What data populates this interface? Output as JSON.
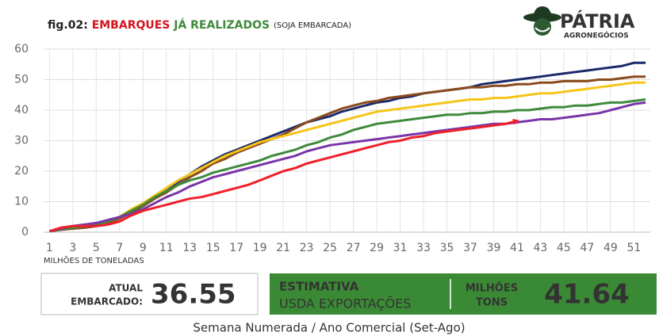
{
  "header": {
    "fig": "fig.02:",
    "title_red": "EMBARQUES",
    "title_green": "JÁ REALIZADOS",
    "subtitle": "(SOJA EMBARCADA)",
    "logo": "PÁTRIA",
    "logo_sub": "AGRONEGÓCIOS"
  },
  "chart_data": {
    "type": "line",
    "x": [
      1,
      2,
      3,
      4,
      5,
      6,
      7,
      8,
      9,
      10,
      11,
      12,
      13,
      14,
      15,
      16,
      17,
      18,
      19,
      20,
      21,
      22,
      23,
      24,
      25,
      26,
      27,
      28,
      29,
      30,
      31,
      32,
      33,
      34,
      35,
      36,
      37,
      38,
      39,
      40,
      41,
      42,
      43,
      44,
      45,
      46,
      47,
      48,
      49,
      50,
      51,
      52
    ],
    "xlim": [
      0.5,
      52.4
    ],
    "xticks": [
      1,
      3,
      5,
      7,
      9,
      11,
      13,
      15,
      17,
      19,
      21,
      23,
      25,
      27,
      29,
      31,
      33,
      35,
      37,
      39,
      41,
      43,
      45,
      47,
      49,
      51
    ],
    "ylim": [
      0,
      60
    ],
    "yticks": [
      0,
      10,
      20,
      30,
      40,
      50,
      60
    ],
    "grid": true,
    "ylabel": "MILHÕES DE TONELADAS",
    "xlabel": "Semana Numerada / Ano Comercial (Set-Ago)",
    "series": [
      {
        "color": "#1b2a6b",
        "values": [
          0.3,
          0.8,
          1.2,
          1.5,
          2,
          3,
          4.5,
          6.5,
          9,
          11.5,
          14,
          16.5,
          19,
          21.5,
          23.5,
          25.5,
          27,
          28.5,
          30,
          31.5,
          33,
          34.5,
          36,
          37,
          38,
          39.5,
          40.5,
          41.5,
          42.5,
          43,
          44,
          44.5,
          45.5,
          46,
          46.5,
          47,
          47.5,
          48.5,
          49,
          49.5,
          50,
          50.5,
          51,
          51.5,
          52,
          52.5,
          53,
          53.5,
          54,
          54.5,
          55.5,
          55.5
        ]
      },
      {
        "color": "#8b4a1c",
        "values": [
          0.3,
          0.8,
          1.2,
          1.5,
          2,
          3,
          4.5,
          6.5,
          8.5,
          11,
          13,
          15.5,
          18,
          20,
          22.5,
          24,
          26,
          27.5,
          29,
          30.5,
          32,
          34,
          36,
          37.5,
          39,
          40.5,
          41.5,
          42.5,
          43,
          44,
          44.5,
          45,
          45.5,
          46,
          46.5,
          47,
          47.5,
          47.5,
          48,
          48,
          48.5,
          48.5,
          49,
          49,
          49.5,
          49.5,
          49.5,
          50,
          50,
          50.5,
          51,
          51
        ]
      },
      {
        "color": "#f5c518",
        "values": [
          0.3,
          1,
          1.5,
          2,
          2.5,
          3.5,
          5,
          7.5,
          9.5,
          12,
          14.5,
          17,
          19,
          21,
          23,
          25,
          26.5,
          28,
          29.5,
          30.5,
          31.5,
          32.5,
          33.5,
          34.5,
          35.5,
          36.5,
          37.5,
          38.5,
          39.5,
          40,
          40.5,
          41,
          41.5,
          42,
          42.5,
          43,
          43.5,
          43.5,
          44,
          44,
          44.5,
          45,
          45.5,
          45.5,
          46,
          46.5,
          47,
          47.5,
          48,
          48.5,
          49,
          49
        ]
      },
      {
        "color": "#3f8a3a",
        "values": [
          0.3,
          1,
          1.5,
          2,
          2.5,
          3.5,
          5,
          7,
          9,
          11.5,
          13.5,
          15.5,
          17,
          18,
          19.5,
          20.5,
          21.5,
          22.5,
          23.5,
          25,
          26,
          27,
          28.5,
          29.5,
          31,
          32,
          33.5,
          34.5,
          35.5,
          36,
          36.5,
          37,
          37.5,
          38,
          38.5,
          38.5,
          39,
          39,
          39.5,
          39.5,
          40,
          40,
          40.5,
          41,
          41,
          41.5,
          41.5,
          42,
          42.5,
          42.5,
          43,
          43.5
        ]
      },
      {
        "color": "#7a35a8",
        "values": [
          0.3,
          1.2,
          2,
          2.5,
          3,
          4,
          5,
          6,
          7.5,
          9.5,
          11.5,
          13,
          15,
          16.5,
          18,
          19,
          20,
          21,
          22,
          23,
          24,
          25,
          26.5,
          27.5,
          28.5,
          29,
          29.5,
          30,
          30.5,
          31,
          31.5,
          32,
          32.5,
          33,
          33.5,
          34,
          34.5,
          35,
          35.5,
          35.5,
          36,
          36.5,
          37,
          37,
          37.5,
          38,
          38.5,
          39,
          40,
          41,
          42,
          42.5
        ]
      },
      {
        "color": "#f0202a",
        "values": [
          0.3,
          1.5,
          2,
          2,
          2,
          2.5,
          3.5,
          5.5,
          7,
          8,
          9,
          10,
          11,
          11.5,
          12.5,
          13.5,
          14.5,
          15.5,
          17,
          18.5,
          20,
          21,
          22.5,
          23.5,
          24.5,
          25.5,
          26.5,
          27.5,
          28.5,
          29.5,
          30,
          31,
          31.5,
          32.5,
          33,
          33.5,
          34,
          34.5,
          35,
          35.5,
          36.5,
          null,
          null,
          null,
          null,
          null,
          null,
          null,
          null,
          null,
          null,
          null
        ]
      }
    ]
  },
  "panels": {
    "current_label_1": "ATUAL",
    "current_label_2": "EMBARCADO:",
    "current_value": "36.55",
    "estimate_label_1": "ESTIMATIVA",
    "estimate_label_2": "USDA EXPORTAÇÕES",
    "unit_1": "MILHÕES",
    "unit_2": "TONS",
    "estimate_value": "41.64"
  }
}
